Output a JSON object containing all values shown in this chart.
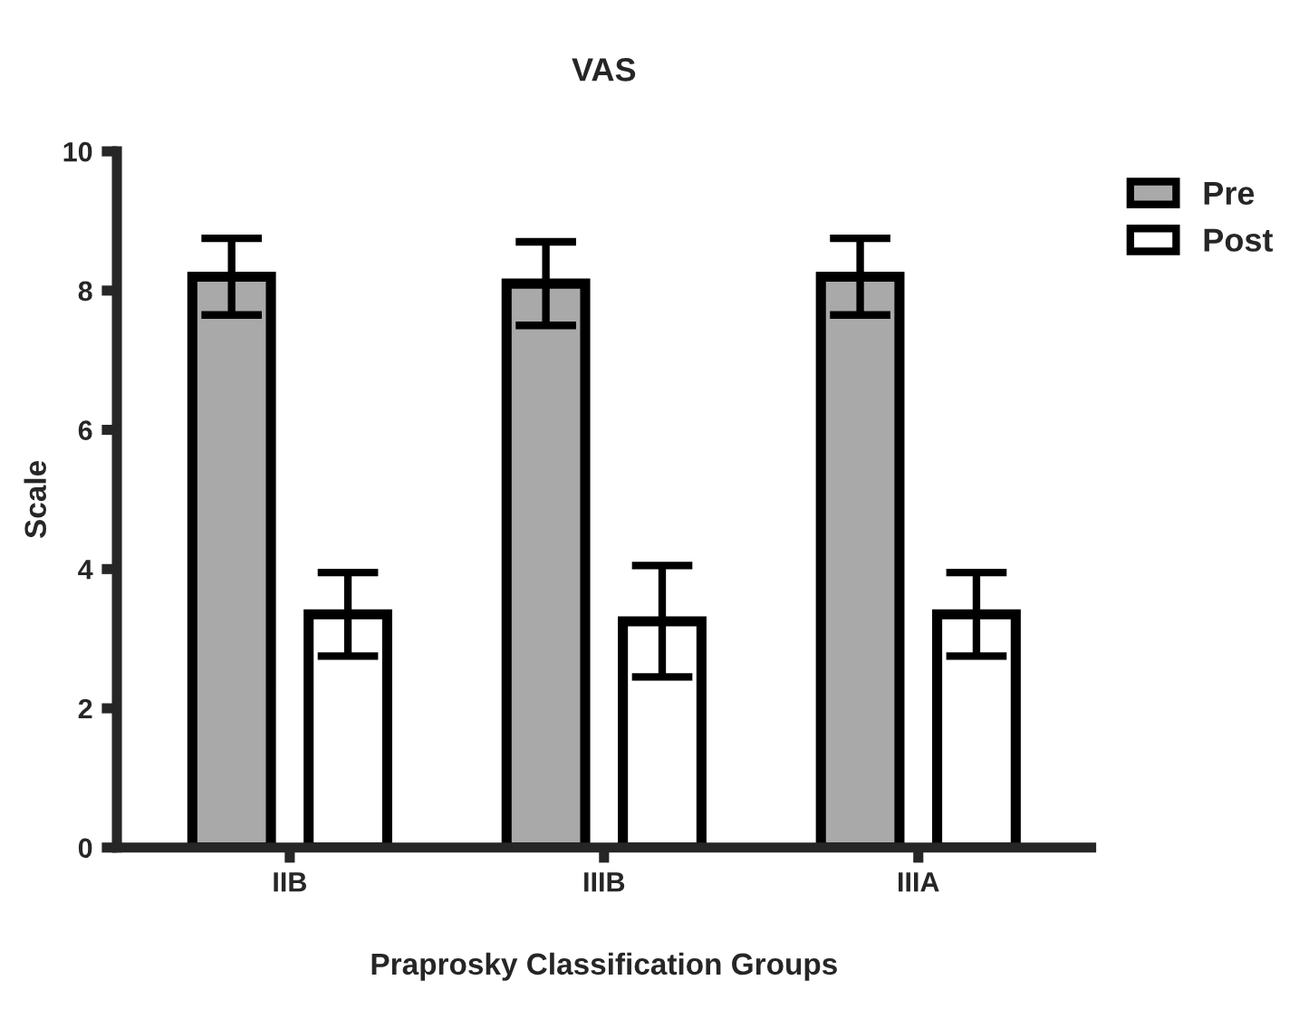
{
  "chart_data": {
    "type": "bar",
    "title": "VAS",
    "xlabel": "Praprosky Classification Groups",
    "ylabel": "Scale",
    "categories": [
      "IIB",
      "IIIB",
      "IIIA"
    ],
    "series": [
      {
        "name": "Pre",
        "color": "#a9a9a9",
        "values": [
          8.2,
          8.1,
          8.2
        ],
        "errors": [
          0.55,
          0.6,
          0.55
        ]
      },
      {
        "name": "Post",
        "color": "#ffffff",
        "values": [
          3.35,
          3.25,
          3.35
        ],
        "errors": [
          0.6,
          0.8,
          0.6
        ]
      }
    ],
    "ylim": [
      0,
      10
    ],
    "yticks": [
      0,
      2,
      4,
      6,
      8,
      10
    ],
    "grid": false,
    "legend": "top right"
  }
}
